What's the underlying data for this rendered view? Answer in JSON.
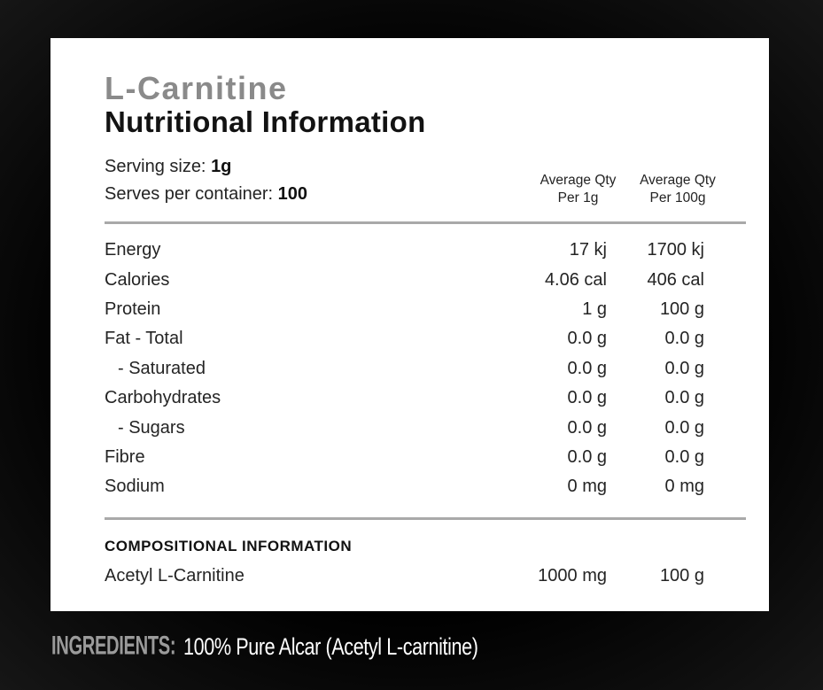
{
  "panel": {
    "title": "L-Carnitine",
    "subtitle": "Nutritional Information",
    "serving_size_label": "Serving size:",
    "serving_size_value": "1g",
    "serves_label": "Serves per container:",
    "serves_value": "100",
    "columns": {
      "col1_line1": "Average Qty",
      "col1_line2": "Per 1g",
      "col2_line1": "Average Qty",
      "col2_line2": "Per 100g"
    },
    "rows": [
      {
        "label": "Energy",
        "per_1g": "17 kj",
        "per_100g": "1700 kj"
      },
      {
        "label": "Calories",
        "per_1g": "4.06 cal",
        "per_100g": "406 cal"
      },
      {
        "label": "Protein",
        "per_1g": "1 g",
        "per_100g": "100 g"
      },
      {
        "label": "Fat - Total",
        "per_1g": "0.0 g",
        "per_100g": "0.0 g"
      },
      {
        "label": "- Saturated",
        "per_1g": "0.0 g",
        "per_100g": "0.0 g"
      },
      {
        "label": "Carbohydrates",
        "per_1g": "0.0 g",
        "per_100g": "0.0 g"
      },
      {
        "label": "- Sugars",
        "per_1g": "0.0 g",
        "per_100g": "0.0 g"
      },
      {
        "label": "Fibre",
        "per_1g": "0.0 g",
        "per_100g": "0.0 g"
      },
      {
        "label": "Sodium",
        "per_1g": "0 mg",
        "per_100g": "0 mg"
      }
    ],
    "compositional_header": "COMPOSITIONAL INFORMATION",
    "compositional_rows": [
      {
        "label": "Acetyl L-Carnitine",
        "per_1g": "1000 mg",
        "per_100g": "100 g"
      }
    ]
  },
  "footer": {
    "ingredients_label": "INGREDIENTS:",
    "ingredients_value": "100% Pure Alcar (Acetyl L-carnitine)"
  },
  "colors": {
    "background": "#000000",
    "panel": "#ffffff",
    "title_gray": "#8a8a8a",
    "text_dark": "#242424",
    "divider_gray": "#a9a9a9",
    "ingredients_label_gray": "#9b9b9b",
    "ingredients_text_white": "#ffffff"
  }
}
